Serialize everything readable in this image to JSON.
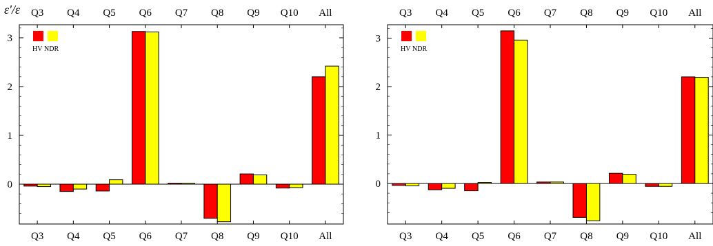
{
  "colors": {
    "HV": "#ff0000",
    "NDR": "#ffff00"
  },
  "chart_data": [
    {
      "type": "bar",
      "ylabel": "ε′/ε",
      "categories": [
        "Q3",
        "Q4",
        "Q5",
        "Q6",
        "Q7",
        "Q8",
        "Q9",
        "Q10",
        "All"
      ],
      "series": [
        {
          "name": "HV",
          "values": [
            -0.04,
            -0.15,
            -0.14,
            3.13,
            0.02,
            -0.7,
            0.21,
            -0.08,
            2.2
          ]
        },
        {
          "name": "NDR",
          "values": [
            -0.05,
            -0.1,
            0.09,
            3.12,
            0.02,
            -0.77,
            0.19,
            -0.07,
            2.42
          ]
        }
      ],
      "ylim": [
        -0.78,
        3.3
      ],
      "yticks": [
        0,
        1,
        2,
        3
      ],
      "legend": "top-left"
    },
    {
      "type": "bar",
      "ylabel": "",
      "categories": [
        "Q3",
        "Q4",
        "Q5",
        "Q6",
        "Q7",
        "Q8",
        "Q9",
        "Q10",
        "All"
      ],
      "series": [
        {
          "name": "HV",
          "values": [
            -0.04,
            -0.13,
            -0.15,
            3.15,
            0.03,
            -0.7,
            0.21,
            -0.06,
            2.2
          ]
        },
        {
          "name": "NDR",
          "values": [
            -0.05,
            -0.1,
            0.02,
            2.96,
            0.03,
            -0.77,
            0.19,
            -0.06,
            2.19
          ]
        }
      ],
      "ylim": [
        -0.78,
        3.3
      ],
      "yticks": [
        0,
        1,
        2,
        3
      ],
      "legend": "top-left"
    }
  ]
}
